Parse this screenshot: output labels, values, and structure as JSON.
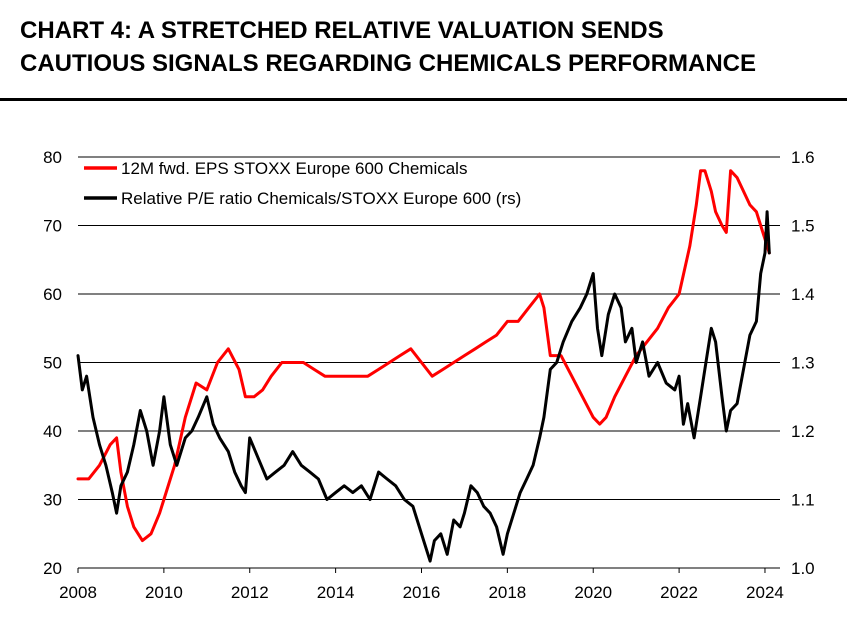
{
  "title_line1": "CHART 4: A STRETCHED RELATIVE VALUATION SENDS",
  "title_line2": "CAUTIOUS SIGNALS REGARDING CHEMICALS PERFORMANCE",
  "colors": {
    "eps": "#ff0000",
    "pe": "#000000",
    "grid": "#000000"
  },
  "chart_data": {
    "type": "line",
    "title": "CHART 4: A STRETCHED RELATIVE VALUATION SENDS CAUTIOUS SIGNALS REGARDING CHEMICALS PERFORMANCE",
    "xlabel": "",
    "ylabel": "",
    "ylabel_right": "",
    "xlim": [
      2008,
      2024.35
    ],
    "ylim": [
      20,
      80
    ],
    "ylim_right": [
      1.0,
      1.6
    ],
    "x_ticks": [
      "2008",
      "2010",
      "2012",
      "2014",
      "2016",
      "2018",
      "2020",
      "2022",
      "2024"
    ],
    "y_ticks_left": [
      "20",
      "30",
      "40",
      "50",
      "60",
      "70",
      "80"
    ],
    "y_ticks_right": [
      "1.0",
      "1.1",
      "1.2",
      "1.3",
      "1.4",
      "1.5",
      "1.6"
    ],
    "grid": "horizontal",
    "legend_position": "top-left",
    "series": [
      {
        "name": "12M fwd. EPS STOXX Europe 600 Chemicals",
        "axis": "left",
        "x": [
          2008.0,
          2008.25,
          2008.5,
          2008.75,
          2008.9,
          2009.0,
          2009.15,
          2009.3,
          2009.5,
          2009.7,
          2009.9,
          2010.0,
          2010.25,
          2010.5,
          2010.75,
          2011.0,
          2011.25,
          2011.5,
          2011.75,
          2011.9,
          2012.1,
          2012.3,
          2012.5,
          2012.75,
          2013.0,
          2013.25,
          2013.5,
          2013.75,
          2014.0,
          2014.25,
          2014.5,
          2014.75,
          2015.0,
          2015.25,
          2015.5,
          2015.75,
          2016.0,
          2016.25,
          2016.5,
          2016.75,
          2017.0,
          2017.25,
          2017.5,
          2017.75,
          2018.0,
          2018.25,
          2018.5,
          2018.75,
          2018.85,
          2019.0,
          2019.25,
          2019.5,
          2019.75,
          2020.0,
          2020.15,
          2020.3,
          2020.5,
          2020.75,
          2021.0,
          2021.25,
          2021.5,
          2021.75,
          2022.0,
          2022.25,
          2022.4,
          2022.5,
          2022.6,
          2022.75,
          2022.85,
          2023.0,
          2023.1,
          2023.2,
          2023.35,
          2023.5,
          2023.65,
          2023.8,
          2023.9,
          2024.0,
          2024.1
        ],
        "values": [
          33,
          33,
          35,
          38,
          39,
          34,
          29,
          26,
          24,
          25,
          28,
          30,
          35,
          42,
          47,
          46,
          50,
          52,
          49,
          45,
          45,
          46,
          48,
          50,
          50,
          50,
          49,
          48,
          48,
          48,
          48,
          48,
          49,
          50,
          51,
          52,
          50,
          48,
          49,
          50,
          51,
          52,
          53,
          54,
          56,
          56,
          58,
          60,
          58,
          51,
          51,
          48,
          45,
          42,
          41,
          42,
          45,
          48,
          51,
          53,
          55,
          58,
          60,
          67,
          73,
          78,
          78,
          75,
          72,
          70,
          69,
          78,
          77,
          75,
          73,
          72,
          70,
          68,
          66
        ]
      },
      {
        "name": "Relative P/E ratio Chemicals/STOXX Europe 600 (rs)",
        "axis": "right",
        "x": [
          2008.0,
          2008.1,
          2008.2,
          2008.35,
          2008.5,
          2008.65,
          2008.8,
          2008.9,
          2009.0,
          2009.15,
          2009.3,
          2009.45,
          2009.6,
          2009.75,
          2009.9,
          2010.0,
          2010.15,
          2010.3,
          2010.5,
          2010.65,
          2010.8,
          2011.0,
          2011.15,
          2011.3,
          2011.5,
          2011.65,
          2011.8,
          2011.9,
          2012.0,
          2012.2,
          2012.4,
          2012.6,
          2012.8,
          2013.0,
          2013.2,
          2013.4,
          2013.6,
          2013.8,
          2014.0,
          2014.2,
          2014.4,
          2014.6,
          2014.8,
          2015.0,
          2015.2,
          2015.4,
          2015.6,
          2015.8,
          2016.0,
          2016.1,
          2016.2,
          2016.3,
          2016.45,
          2016.6,
          2016.75,
          2016.9,
          2017.0,
          2017.15,
          2017.3,
          2017.45,
          2017.6,
          2017.75,
          2017.9,
          2018.0,
          2018.15,
          2018.3,
          2018.45,
          2018.6,
          2018.75,
          2018.85,
          2019.0,
          2019.15,
          2019.3,
          2019.5,
          2019.7,
          2019.85,
          2020.0,
          2020.1,
          2020.2,
          2020.35,
          2020.5,
          2020.65,
          2020.75,
          2020.9,
          2021.0,
          2021.15,
          2021.3,
          2021.5,
          2021.7,
          2021.9,
          2022.0,
          2022.1,
          2022.2,
          2022.35,
          2022.5,
          2022.65,
          2022.75,
          2022.85,
          2023.0,
          2023.1,
          2023.2,
          2023.35,
          2023.5,
          2023.65,
          2023.8,
          2023.9,
          2024.0,
          2024.05,
          2024.1
        ],
        "values": [
          1.31,
          1.26,
          1.28,
          1.22,
          1.18,
          1.15,
          1.11,
          1.08,
          1.12,
          1.14,
          1.18,
          1.23,
          1.2,
          1.15,
          1.2,
          1.25,
          1.18,
          1.15,
          1.19,
          1.2,
          1.22,
          1.25,
          1.21,
          1.19,
          1.17,
          1.14,
          1.12,
          1.11,
          1.19,
          1.16,
          1.13,
          1.14,
          1.15,
          1.17,
          1.15,
          1.14,
          1.13,
          1.1,
          1.11,
          1.12,
          1.11,
          1.12,
          1.1,
          1.14,
          1.13,
          1.12,
          1.1,
          1.09,
          1.05,
          1.03,
          1.01,
          1.04,
          1.05,
          1.02,
          1.07,
          1.06,
          1.08,
          1.12,
          1.11,
          1.09,
          1.08,
          1.06,
          1.02,
          1.05,
          1.08,
          1.11,
          1.13,
          1.15,
          1.19,
          1.22,
          1.29,
          1.3,
          1.33,
          1.36,
          1.38,
          1.4,
          1.43,
          1.35,
          1.31,
          1.37,
          1.4,
          1.38,
          1.33,
          1.35,
          1.3,
          1.33,
          1.28,
          1.3,
          1.27,
          1.26,
          1.28,
          1.21,
          1.24,
          1.19,
          1.25,
          1.31,
          1.35,
          1.33,
          1.25,
          1.2,
          1.23,
          1.24,
          1.29,
          1.34,
          1.36,
          1.43,
          1.46,
          1.52,
          1.46
        ]
      }
    ]
  }
}
